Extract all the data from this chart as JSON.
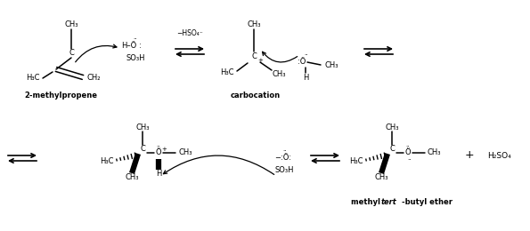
{
  "bg": "#ffffff",
  "fg": "#000000",
  "figw": 5.95,
  "figh": 2.6,
  "dpi": 100,
  "label_2mp": "2-methylpropene",
  "label_carb": "carbocation",
  "label_ether_1": "methyl ",
  "label_ether_2": "tert",
  "label_ether_3": "-butyl ether",
  "label_minus_hso4": "-HSO₄⁻",
  "label_h2so4": "H₂SO₄"
}
